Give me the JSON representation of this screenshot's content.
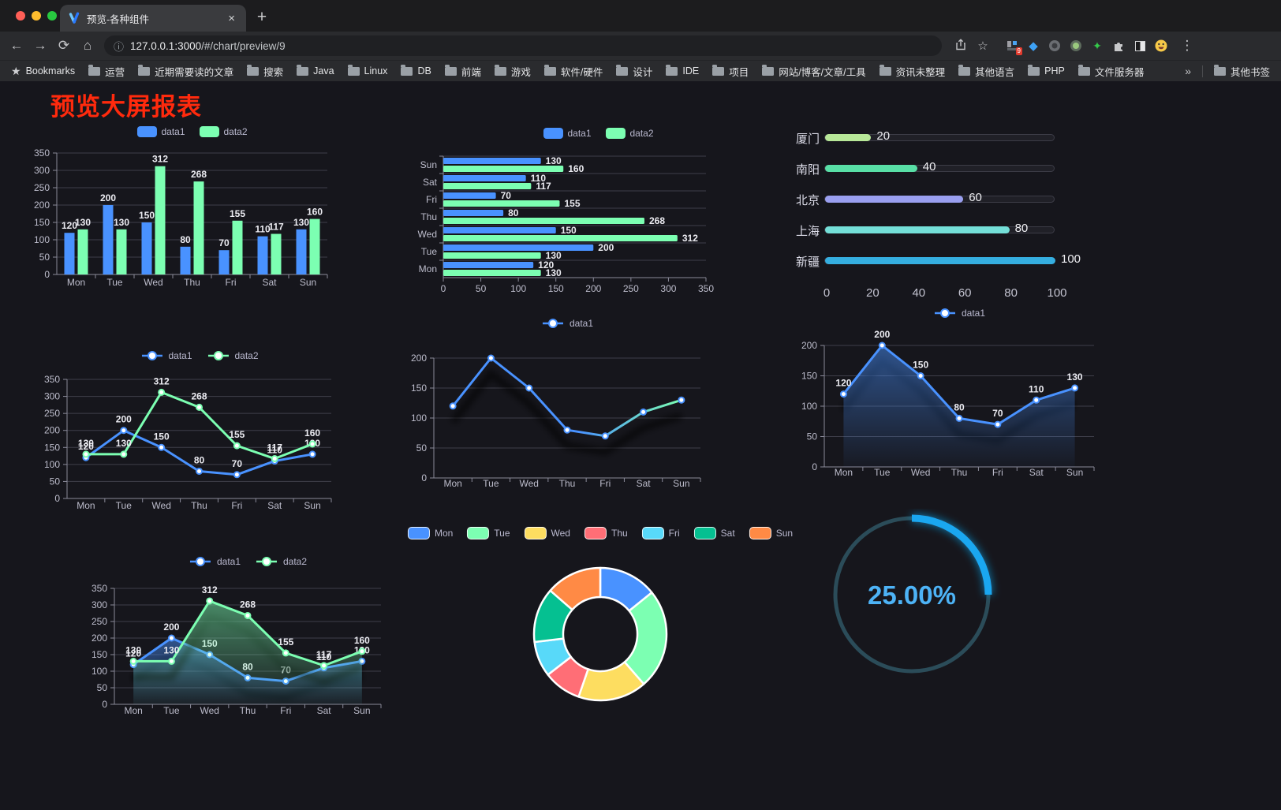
{
  "browser": {
    "traffic_lights": [
      {
        "name": "close",
        "color": "#ff5f57"
      },
      {
        "name": "minimize",
        "color": "#febc2e"
      },
      {
        "name": "maximize",
        "color": "#28c840"
      }
    ],
    "tab": {
      "title": "预览-各种组件"
    },
    "icons": {
      "close": "×",
      "new_tab": "+",
      "back": "←",
      "forward": "→",
      "reload": "⟳",
      "home": "⌂",
      "info": "ⓘ",
      "star": "☆",
      "menu": "⋮",
      "overflow": "»",
      "gem": "◆",
      "spark": "✦"
    },
    "url": {
      "host": "127.0.0.1:3000",
      "path": "/#/chart/preview/9"
    },
    "extensions": [
      {
        "name": "blocks-extension-icon",
        "badge": "9"
      },
      {
        "name": "gem-extension-icon"
      },
      {
        "name": "dark-circle-extension-icon"
      },
      {
        "name": "green-circle-extension-icon"
      },
      {
        "name": "green-star-extension-icon"
      },
      {
        "name": "puzzle-icon"
      },
      {
        "name": "reader-mode-icon"
      },
      {
        "name": "emoji-extension-icon"
      }
    ],
    "bookmarks": {
      "label": "Bookmarks",
      "folders": [
        "运营",
        "近期需要读的文章",
        "搜索",
        "Java",
        "Linux",
        "DB",
        "前端",
        "游戏",
        "软件/硬件",
        "设计",
        "IDE",
        "项目",
        "网站/博客/文章/工具",
        "资讯未整理",
        "其他语言",
        "PHP",
        "文件服务器"
      ],
      "overflow": "»",
      "other": "其他书签"
    }
  },
  "page": {
    "title": "预览大屏报表",
    "title_color": "#ff2a0d"
  },
  "chart_data": [
    {
      "id": "c1",
      "type": "bar",
      "orientation": "vertical",
      "categories": [
        "Mon",
        "Tue",
        "Wed",
        "Thu",
        "Fri",
        "Sat",
        "Sun"
      ],
      "series": [
        {
          "name": "data1",
          "color": "#4992ff",
          "values": [
            120,
            200,
            150,
            80,
            70,
            110,
            130
          ]
        },
        {
          "name": "data2",
          "color": "#7cffb2",
          "values": [
            130,
            130,
            312,
            268,
            155,
            117,
            160
          ]
        }
      ],
      "ylim": [
        0,
        350
      ],
      "ytick": 50,
      "grid": true,
      "legend_position": "top",
      "data_labels": true
    },
    {
      "id": "c2",
      "type": "bar",
      "orientation": "horizontal",
      "categories": [
        "Sun",
        "Sat",
        "Fri",
        "Thu",
        "Wed",
        "Tue",
        "Mon"
      ],
      "series": [
        {
          "name": "data1",
          "color": "#4992ff",
          "values": [
            130,
            110,
            70,
            80,
            150,
            200,
            120
          ]
        },
        {
          "name": "data2",
          "color": "#7cffb2",
          "values": [
            160,
            117,
            155,
            268,
            312,
            130,
            130
          ]
        }
      ],
      "xlim": [
        0,
        350
      ],
      "xtick": 50,
      "grid": true,
      "legend_position": "top",
      "data_labels": true
    },
    {
      "id": "c3",
      "type": "bar",
      "orientation": "horizontal-progress",
      "items": [
        {
          "label": "厦门",
          "value": 20,
          "color": "#b7e798"
        },
        {
          "label": "南阳",
          "value": 40,
          "color": "#58dfa6"
        },
        {
          "label": "北京",
          "value": 60,
          "color": "#9a9ff0"
        },
        {
          "label": "上海",
          "value": 80,
          "color": "#74dfd8"
        },
        {
          "label": "新疆",
          "value": 100,
          "color": "#35aee0"
        }
      ],
      "xlim": [
        0,
        100
      ],
      "xticks": [
        0,
        20,
        40,
        60,
        80,
        100
      ]
    },
    {
      "id": "c4",
      "type": "line",
      "categories": [
        "Mon",
        "Tue",
        "Wed",
        "Thu",
        "Fri",
        "Sat",
        "Sun"
      ],
      "series": [
        {
          "name": "data1",
          "color": "#4992ff",
          "values": [
            120,
            200,
            150,
            80,
            70,
            110,
            130
          ]
        },
        {
          "name": "data2",
          "color": "#7cffb2",
          "values": [
            130,
            130,
            312,
            268,
            155,
            117,
            160
          ]
        }
      ],
      "ylim": [
        0,
        350
      ],
      "ytick": 50,
      "grid": true,
      "legend_position": "top",
      "data_labels": true
    },
    {
      "id": "c5",
      "type": "line",
      "categories": [
        "Mon",
        "Tue",
        "Wed",
        "Thu",
        "Fri",
        "Sat",
        "Sun"
      ],
      "series": [
        {
          "name": "data1",
          "color": "#4992ff",
          "gradient": [
            "#4992ff",
            "#7cffb2"
          ],
          "shadow": true,
          "values": [
            120,
            200,
            150,
            80,
            70,
            110,
            130
          ]
        }
      ],
      "ylim": [
        0,
        200
      ],
      "ytick": 50,
      "grid": true,
      "legend_position": "top",
      "data_labels": false
    },
    {
      "id": "c6",
      "type": "area",
      "categories": [
        "Mon",
        "Tue",
        "Wed",
        "Thu",
        "Fri",
        "Sat",
        "Sun"
      ],
      "series": [
        {
          "name": "data1",
          "color": "#4992ff",
          "area": true,
          "shadow": true,
          "values": [
            120,
            200,
            150,
            80,
            70,
            110,
            130
          ]
        }
      ],
      "ylim": [
        0,
        200
      ],
      "ytick": 50,
      "grid": true,
      "legend_position": "top",
      "data_labels": true
    },
    {
      "id": "c7",
      "type": "area",
      "categories": [
        "Mon",
        "Tue",
        "Wed",
        "Thu",
        "Fri",
        "Sat",
        "Sun"
      ],
      "series": [
        {
          "name": "data1",
          "color": "#4992ff",
          "area": true,
          "shadow": true,
          "values": [
            120,
            200,
            150,
            80,
            70,
            110,
            130
          ]
        },
        {
          "name": "data2",
          "color": "#7cffb2",
          "area": true,
          "shadow": true,
          "values": [
            130,
            130,
            312,
            268,
            155,
            117,
            160
          ]
        }
      ],
      "ylim": [
        0,
        350
      ],
      "ytick": 50,
      "grid": true,
      "legend_position": "top",
      "data_labels": true
    },
    {
      "id": "c8",
      "type": "pie",
      "inner_radius_ratio": 0.56,
      "border_color": "#ffffff",
      "slices": [
        {
          "label": "Mon",
          "color": "#4992ff",
          "value_pct": 14.2
        },
        {
          "label": "Tue",
          "color": "#7cffb2",
          "value_pct": 24.4
        },
        {
          "label": "Wed",
          "color": "#fddd60",
          "value_pct": 16.7
        },
        {
          "label": "Thu",
          "color": "#ff6e76",
          "value_pct": 9.2
        },
        {
          "label": "Fri",
          "color": "#58d9f9",
          "value_pct": 8.6
        },
        {
          "label": "Sat",
          "color": "#05c091",
          "value_pct": 13.3
        },
        {
          "label": "Sun",
          "color": "#ff8a45",
          "value_pct": 13.6
        }
      ],
      "legend_position": "top"
    },
    {
      "id": "c9",
      "type": "gauge",
      "value_pct": 25,
      "label": "25.00%",
      "track_color": "#2b4c59",
      "progress_color": "#1aa7f0",
      "text_color": "#4db3f6"
    }
  ]
}
